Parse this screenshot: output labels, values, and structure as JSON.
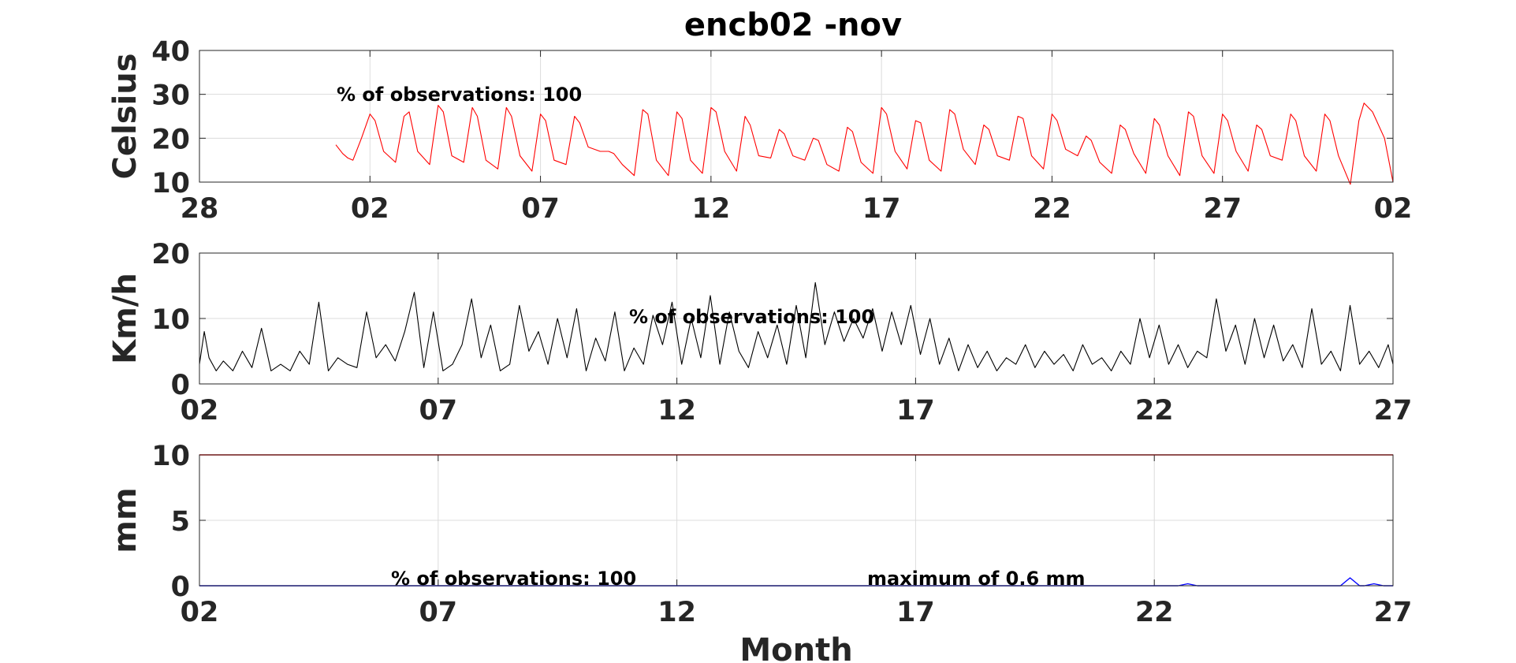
{
  "figure_title": "encb02 -nov",
  "chart_data": [
    {
      "type": "line",
      "ylabel": "Celsius",
      "xlabel": "",
      "ylim": [
        10,
        40
      ],
      "yticks": [
        10,
        20,
        30,
        40
      ],
      "xlim": [
        0,
        35
      ],
      "xtick_labels": [
        "28",
        "02",
        "07",
        "12",
        "17",
        "22",
        "27",
        "02"
      ],
      "grid": true,
      "annotations": [
        "% of observations: 100"
      ],
      "series": [
        {
          "color": "#ff0000",
          "x": [
            4.0,
            4.1,
            4.2,
            4.35,
            4.5,
            4.75,
            5.0,
            5.15,
            5.4,
            5.75,
            6.0,
            6.15,
            6.4,
            6.75,
            7.0,
            7.15,
            7.4,
            7.75,
            8.0,
            8.15,
            8.4,
            8.75,
            9.0,
            9.15,
            9.4,
            9.75,
            10.0,
            10.15,
            10.4,
            10.75,
            11.0,
            11.15,
            11.4,
            11.75,
            12.0,
            12.15,
            12.4,
            12.75,
            13.0,
            13.15,
            13.4,
            13.75,
            14.0,
            14.15,
            14.4,
            14.75,
            15.0,
            15.15,
            15.4,
            15.75,
            16.0,
            16.15,
            16.4,
            16.75,
            17.0,
            17.15,
            17.4,
            17.75,
            18.0,
            18.15,
            18.4,
            18.75,
            19.0,
            19.15,
            19.4,
            19.75,
            20.0,
            20.15,
            20.4,
            20.75,
            21.0,
            21.15,
            21.4,
            21.75,
            22.0,
            22.15,
            22.4,
            22.75,
            23.0,
            23.15,
            23.4,
            23.75,
            24.0,
            24.15,
            24.4,
            24.75,
            25.0,
            25.15,
            25.4,
            25.75,
            26.0,
            26.15,
            26.4,
            26.75,
            27.0,
            27.15,
            27.4,
            27.75,
            28.0,
            28.15,
            28.4,
            28.75,
            29.0,
            29.15,
            29.4,
            29.75,
            30.0,
            30.15,
            30.4,
            30.75,
            31.0,
            31.15,
            31.4,
            31.75,
            32.0,
            32.15,
            32.4,
            32.75,
            33.0,
            33.15,
            33.4,
            33.75,
            34.0,
            34.15,
            34.4,
            34.75,
            35.0
          ],
          "values": [
            18.5,
            17.5,
            16.5,
            15.5,
            15.0,
            20.0,
            25.5,
            24.0,
            17.0,
            14.5,
            25.0,
            26.0,
            17.0,
            14.0,
            27.5,
            26.0,
            16.0,
            14.5,
            27.0,
            25.0,
            15.0,
            13.0,
            27.0,
            25.0,
            16.0,
            12.5,
            25.5,
            24.0,
            15.0,
            14.0,
            25.0,
            23.5,
            18.0,
            17.0,
            17.0,
            16.5,
            14.0,
            11.5,
            26.5,
            25.5,
            15.0,
            11.5,
            26.0,
            24.5,
            15.0,
            12.0,
            27.0,
            26.0,
            17.0,
            12.5,
            25.0,
            23.0,
            16.0,
            15.5,
            22.0,
            21.0,
            16.0,
            15.0,
            20.0,
            19.5,
            14.0,
            12.5,
            22.5,
            21.5,
            14.5,
            12.0,
            27.0,
            25.5,
            17.0,
            13.0,
            24.0,
            23.5,
            15.0,
            12.5,
            26.5,
            25.5,
            17.5,
            14.0,
            23.0,
            22.0,
            16.0,
            15.0,
            25.0,
            24.5,
            16.0,
            13.0,
            25.5,
            24.0,
            17.5,
            16.0,
            20.5,
            19.5,
            14.5,
            12.0,
            23.0,
            22.0,
            16.5,
            12.0,
            24.5,
            23.0,
            16.0,
            11.5,
            26.0,
            25.0,
            16.0,
            12.0,
            25.5,
            24.0,
            17.0,
            12.5,
            23.0,
            22.0,
            16.0,
            15.0,
            25.5,
            24.0,
            16.0,
            12.5,
            25.5,
            24.0,
            16.0,
            9.5,
            24.0,
            28.0,
            26.0,
            20.0,
            10.0
          ]
        }
      ]
    },
    {
      "type": "line",
      "ylabel": "Km/h",
      "xlabel": "",
      "ylim": [
        0,
        20
      ],
      "yticks": [
        0,
        10,
        20
      ],
      "xlim": [
        0,
        25
      ],
      "xtick_labels": [
        "02",
        "07",
        "12",
        "17",
        "22",
        "27"
      ],
      "grid": true,
      "annotations": [
        "% of observations: 100"
      ],
      "series": [
        {
          "color": "#000000",
          "x": [
            0.0,
            0.1,
            0.2,
            0.35,
            0.5,
            0.7,
            0.9,
            1.1,
            1.3,
            1.5,
            1.7,
            1.9,
            2.1,
            2.3,
            2.5,
            2.7,
            2.9,
            3.1,
            3.3,
            3.5,
            3.7,
            3.9,
            4.1,
            4.3,
            4.5,
            4.7,
            4.9,
            5.1,
            5.3,
            5.5,
            5.7,
            5.9,
            6.1,
            6.3,
            6.5,
            6.7,
            6.9,
            7.1,
            7.3,
            7.5,
            7.7,
            7.9,
            8.1,
            8.3,
            8.5,
            8.7,
            8.9,
            9.1,
            9.3,
            9.5,
            9.7,
            9.9,
            10.1,
            10.3,
            10.5,
            10.7,
            10.9,
            11.1,
            11.3,
            11.5,
            11.7,
            11.9,
            12.1,
            12.3,
            12.5,
            12.7,
            12.9,
            13.1,
            13.3,
            13.5,
            13.7,
            13.9,
            14.1,
            14.3,
            14.5,
            14.7,
            14.9,
            15.1,
            15.3,
            15.5,
            15.7,
            15.9,
            16.1,
            16.3,
            16.5,
            16.7,
            16.9,
            17.1,
            17.3,
            17.5,
            17.7,
            17.9,
            18.1,
            18.3,
            18.5,
            18.7,
            18.9,
            19.1,
            19.3,
            19.5,
            19.7,
            19.9,
            20.1,
            20.3,
            20.5,
            20.7,
            20.9,
            21.1,
            21.3,
            21.5,
            21.7,
            21.9,
            22.1,
            22.3,
            22.5,
            22.7,
            22.9,
            23.1,
            23.3,
            23.5,
            23.7,
            23.9,
            24.1,
            24.3,
            24.5,
            24.7,
            24.9,
            25.0
          ],
          "values": [
            3.0,
            8.0,
            4.0,
            2.0,
            3.5,
            2.0,
            5.0,
            2.5,
            8.5,
            2.0,
            3.0,
            2.0,
            5.0,
            3.0,
            12.5,
            2.0,
            4.0,
            3.0,
            2.5,
            11.0,
            4.0,
            6.0,
            3.5,
            8.0,
            14.0,
            2.5,
            11.0,
            2.0,
            3.0,
            6.0,
            13.0,
            4.0,
            9.0,
            2.0,
            3.0,
            12.0,
            5.0,
            8.0,
            3.0,
            10.0,
            4.0,
            11.5,
            2.0,
            7.0,
            3.5,
            11.0,
            2.0,
            5.5,
            3.0,
            10.5,
            6.0,
            12.5,
            3.0,
            10.0,
            4.0,
            13.5,
            3.0,
            11.0,
            5.0,
            2.5,
            8.0,
            4.0,
            9.0,
            3.0,
            12.0,
            4.0,
            15.5,
            6.0,
            11.0,
            6.5,
            10.0,
            7.0,
            11.5,
            5.0,
            11.0,
            6.0,
            12.0,
            4.5,
            10.0,
            3.0,
            7.0,
            2.0,
            6.0,
            2.5,
            5.0,
            2.0,
            4.0,
            3.0,
            6.0,
            2.5,
            5.0,
            3.0,
            4.5,
            2.0,
            6.0,
            3.0,
            4.0,
            2.0,
            5.0,
            3.0,
            10.0,
            4.0,
            9.0,
            3.0,
            6.0,
            2.5,
            5.0,
            4.0,
            13.0,
            5.0,
            9.0,
            3.0,
            10.0,
            4.0,
            9.0,
            3.5,
            6.0,
            2.5,
            11.5,
            3.0,
            5.0,
            2.0,
            12.0,
            3.0,
            5.0,
            2.5,
            6.0,
            3.0
          ]
        }
      ]
    },
    {
      "type": "line",
      "ylabel": "mm",
      "xlabel": "Month",
      "ylim": [
        0,
        10
      ],
      "yticks": [
        0,
        5,
        10
      ],
      "xlim": [
        0,
        25
      ],
      "xtick_labels": [
        "02",
        "07",
        "12",
        "17",
        "22",
        "27"
      ],
      "grid": true,
      "annotations": [
        "% of observations: 100",
        "maximum of 0.6 mm"
      ],
      "series": [
        {
          "color": "#0000ff",
          "x": [
            0.0,
            20.5,
            20.7,
            20.9,
            23.9,
            24.1,
            24.3,
            24.4,
            24.6,
            24.8,
            25.0
          ],
          "values": [
            0.0,
            0.0,
            0.15,
            0.0,
            0.0,
            0.6,
            0.0,
            0.0,
            0.15,
            0.0,
            0.0
          ]
        },
        {
          "color": "#ff0000",
          "x": [
            0.0,
            25.0
          ],
          "values": [
            10.0,
            10.0
          ]
        }
      ]
    }
  ]
}
